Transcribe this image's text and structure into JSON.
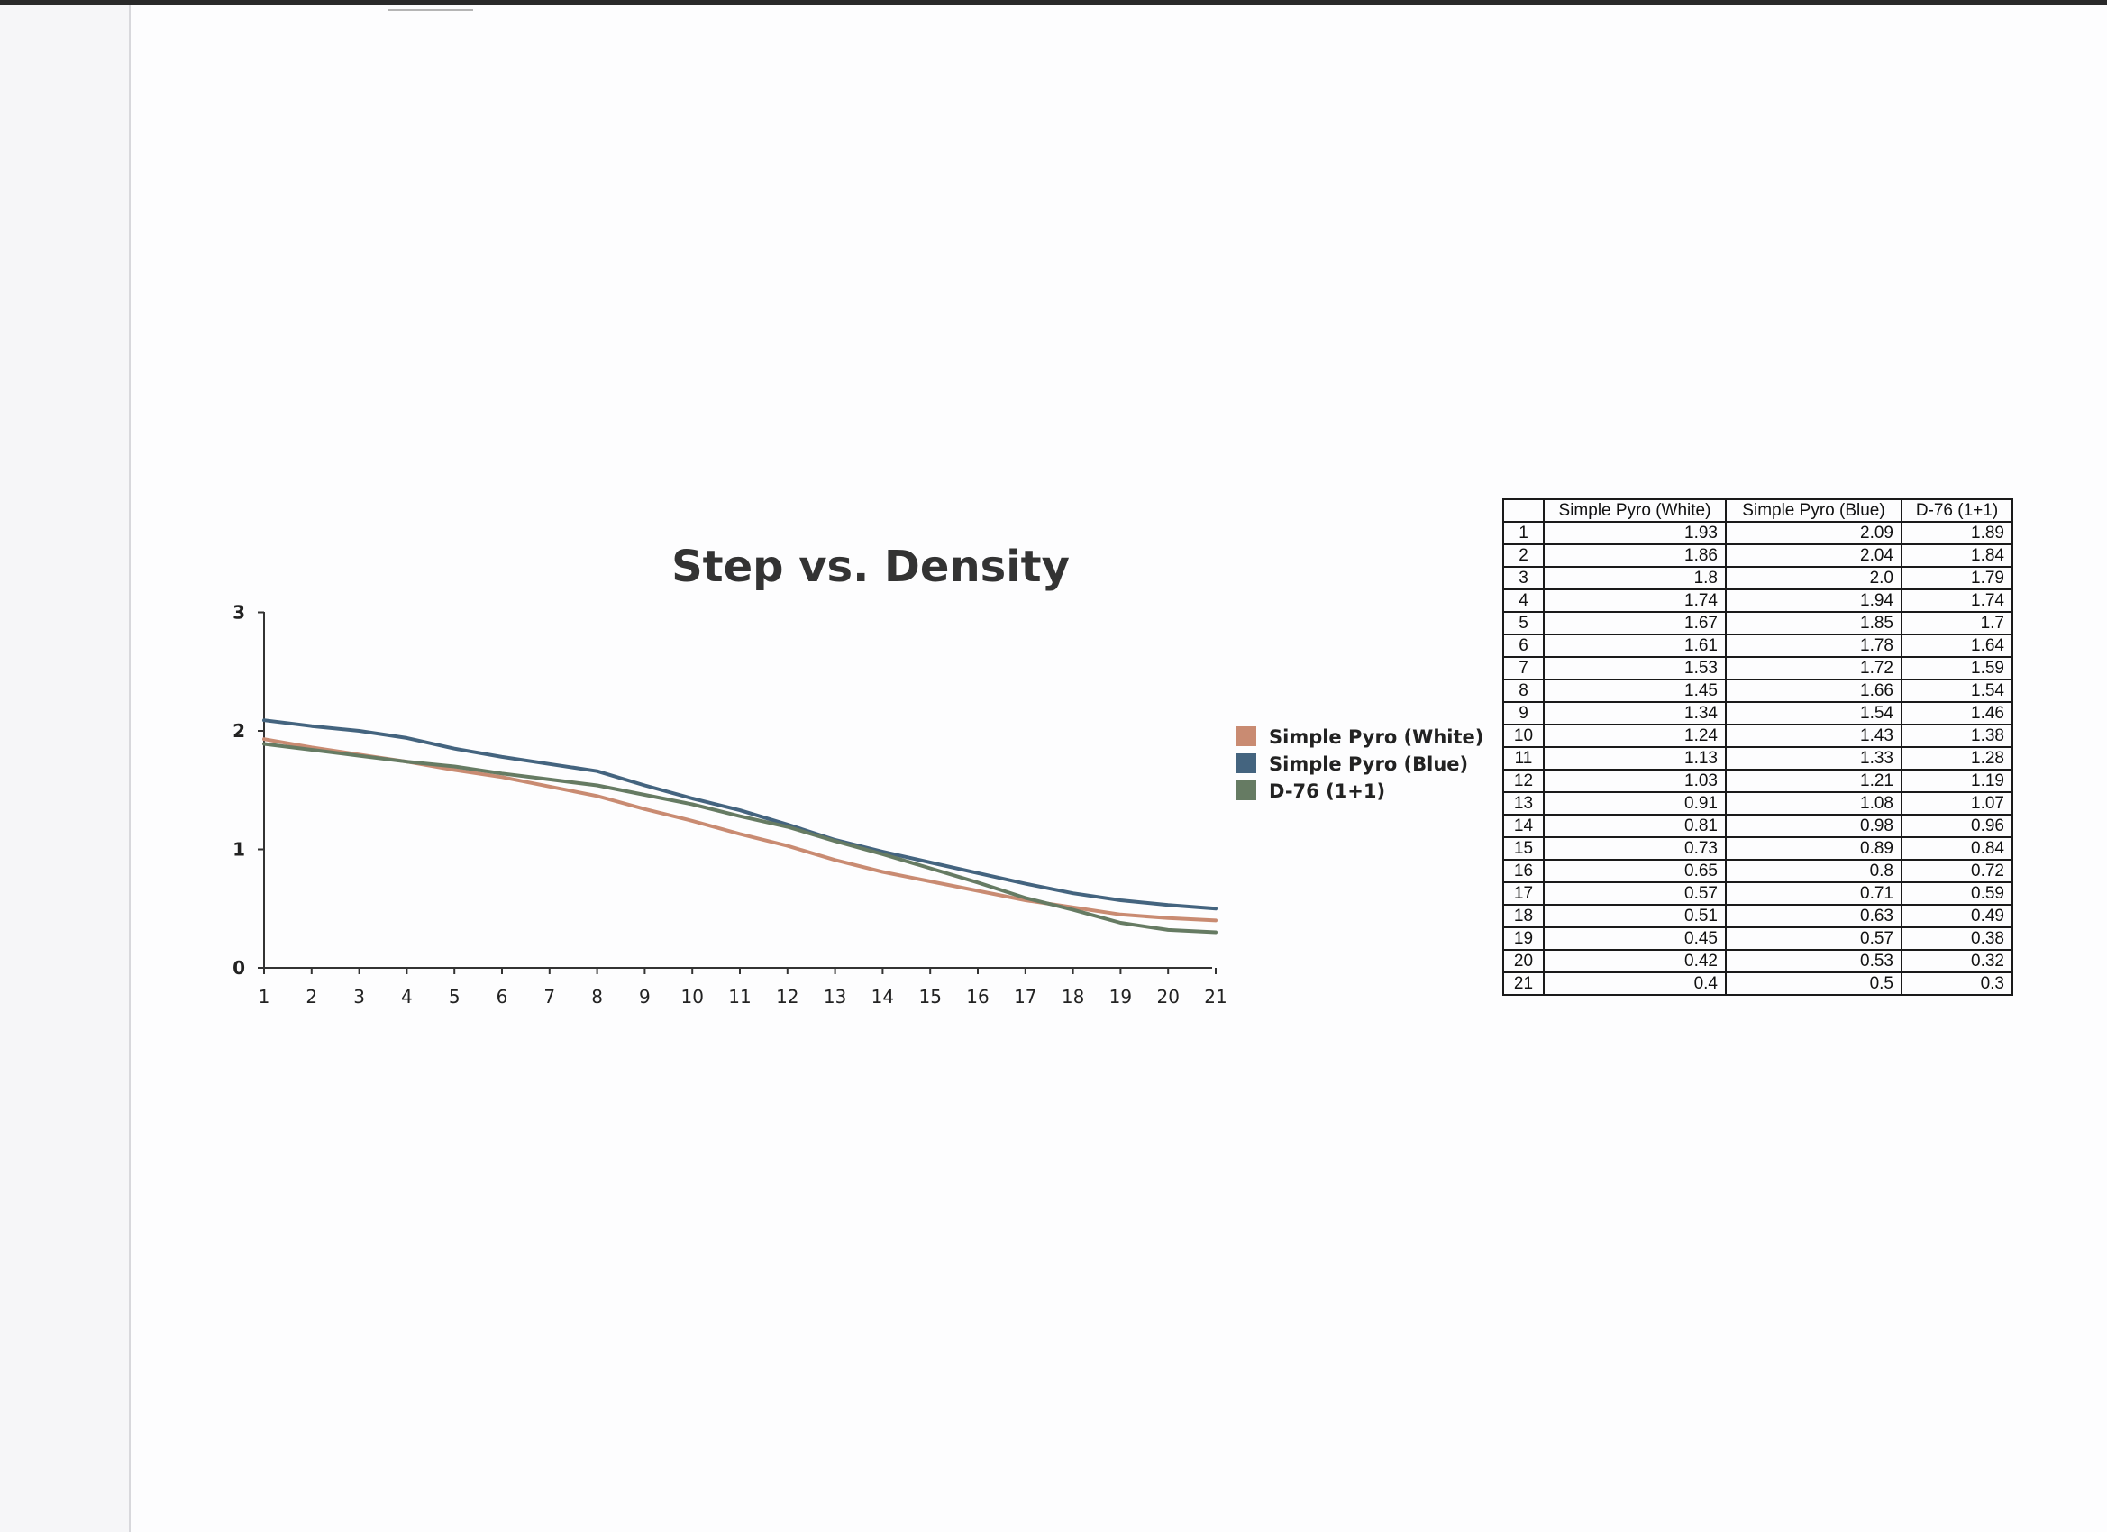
{
  "chart_data": {
    "type": "line",
    "title": "Step vs. Density",
    "xlabel": "",
    "ylabel": "",
    "x": [
      1,
      2,
      3,
      4,
      5,
      6,
      7,
      8,
      9,
      10,
      11,
      12,
      13,
      14,
      15,
      16,
      17,
      18,
      19,
      20,
      21
    ],
    "ylim": [
      0,
      3
    ],
    "yticks": [
      0,
      1,
      2,
      3
    ],
    "grid": false,
    "legend_position": "right",
    "series": [
      {
        "name": "Simple Pyro (White)",
        "color": "#c98b72",
        "values": [
          1.93,
          1.86,
          1.8,
          1.74,
          1.67,
          1.61,
          1.53,
          1.45,
          1.34,
          1.24,
          1.13,
          1.03,
          0.91,
          0.81,
          0.73,
          0.65,
          0.57,
          0.51,
          0.45,
          0.42,
          0.4
        ]
      },
      {
        "name": "Simple Pyro (Blue)",
        "color": "#44647f",
        "values": [
          2.09,
          2.04,
          2.0,
          1.94,
          1.85,
          1.78,
          1.72,
          1.66,
          1.54,
          1.43,
          1.33,
          1.21,
          1.08,
          0.98,
          0.89,
          0.8,
          0.71,
          0.63,
          0.57,
          0.53,
          0.5
        ]
      },
      {
        "name": "D-76 (1+1)",
        "color": "#667b63",
        "values": [
          1.89,
          1.84,
          1.79,
          1.74,
          1.7,
          1.64,
          1.59,
          1.54,
          1.46,
          1.38,
          1.28,
          1.19,
          1.07,
          0.96,
          0.84,
          0.72,
          0.59,
          0.49,
          0.38,
          0.32,
          0.3
        ]
      }
    ]
  },
  "table": {
    "columns": [
      "",
      "Simple Pyro (White)",
      "Simple Pyro (Blue)",
      "D-76 (1+1)"
    ],
    "rows": [
      [
        "1",
        "1.93",
        "2.09",
        "1.89"
      ],
      [
        "2",
        "1.86",
        "2.04",
        "1.84"
      ],
      [
        "3",
        "1.8",
        "2.0",
        "1.79"
      ],
      [
        "4",
        "1.74",
        "1.94",
        "1.74"
      ],
      [
        "5",
        "1.67",
        "1.85",
        "1.7"
      ],
      [
        "6",
        "1.61",
        "1.78",
        "1.64"
      ],
      [
        "7",
        "1.53",
        "1.72",
        "1.59"
      ],
      [
        "8",
        "1.45",
        "1.66",
        "1.54"
      ],
      [
        "9",
        "1.34",
        "1.54",
        "1.46"
      ],
      [
        "10",
        "1.24",
        "1.43",
        "1.38"
      ],
      [
        "11",
        "1.13",
        "1.33",
        "1.28"
      ],
      [
        "12",
        "1.03",
        "1.21",
        "1.19"
      ],
      [
        "13",
        "0.91",
        "1.08",
        "1.07"
      ],
      [
        "14",
        "0.81",
        "0.98",
        "0.96"
      ],
      [
        "15",
        "0.73",
        "0.89",
        "0.84"
      ],
      [
        "16",
        "0.65",
        "0.8",
        "0.72"
      ],
      [
        "17",
        "0.57",
        "0.71",
        "0.59"
      ],
      [
        "18",
        "0.51",
        "0.63",
        "0.49"
      ],
      [
        "19",
        "0.45",
        "0.57",
        "0.38"
      ],
      [
        "20",
        "0.42",
        "0.53",
        "0.32"
      ],
      [
        "21",
        "0.4",
        "0.5",
        "0.3"
      ]
    ]
  }
}
